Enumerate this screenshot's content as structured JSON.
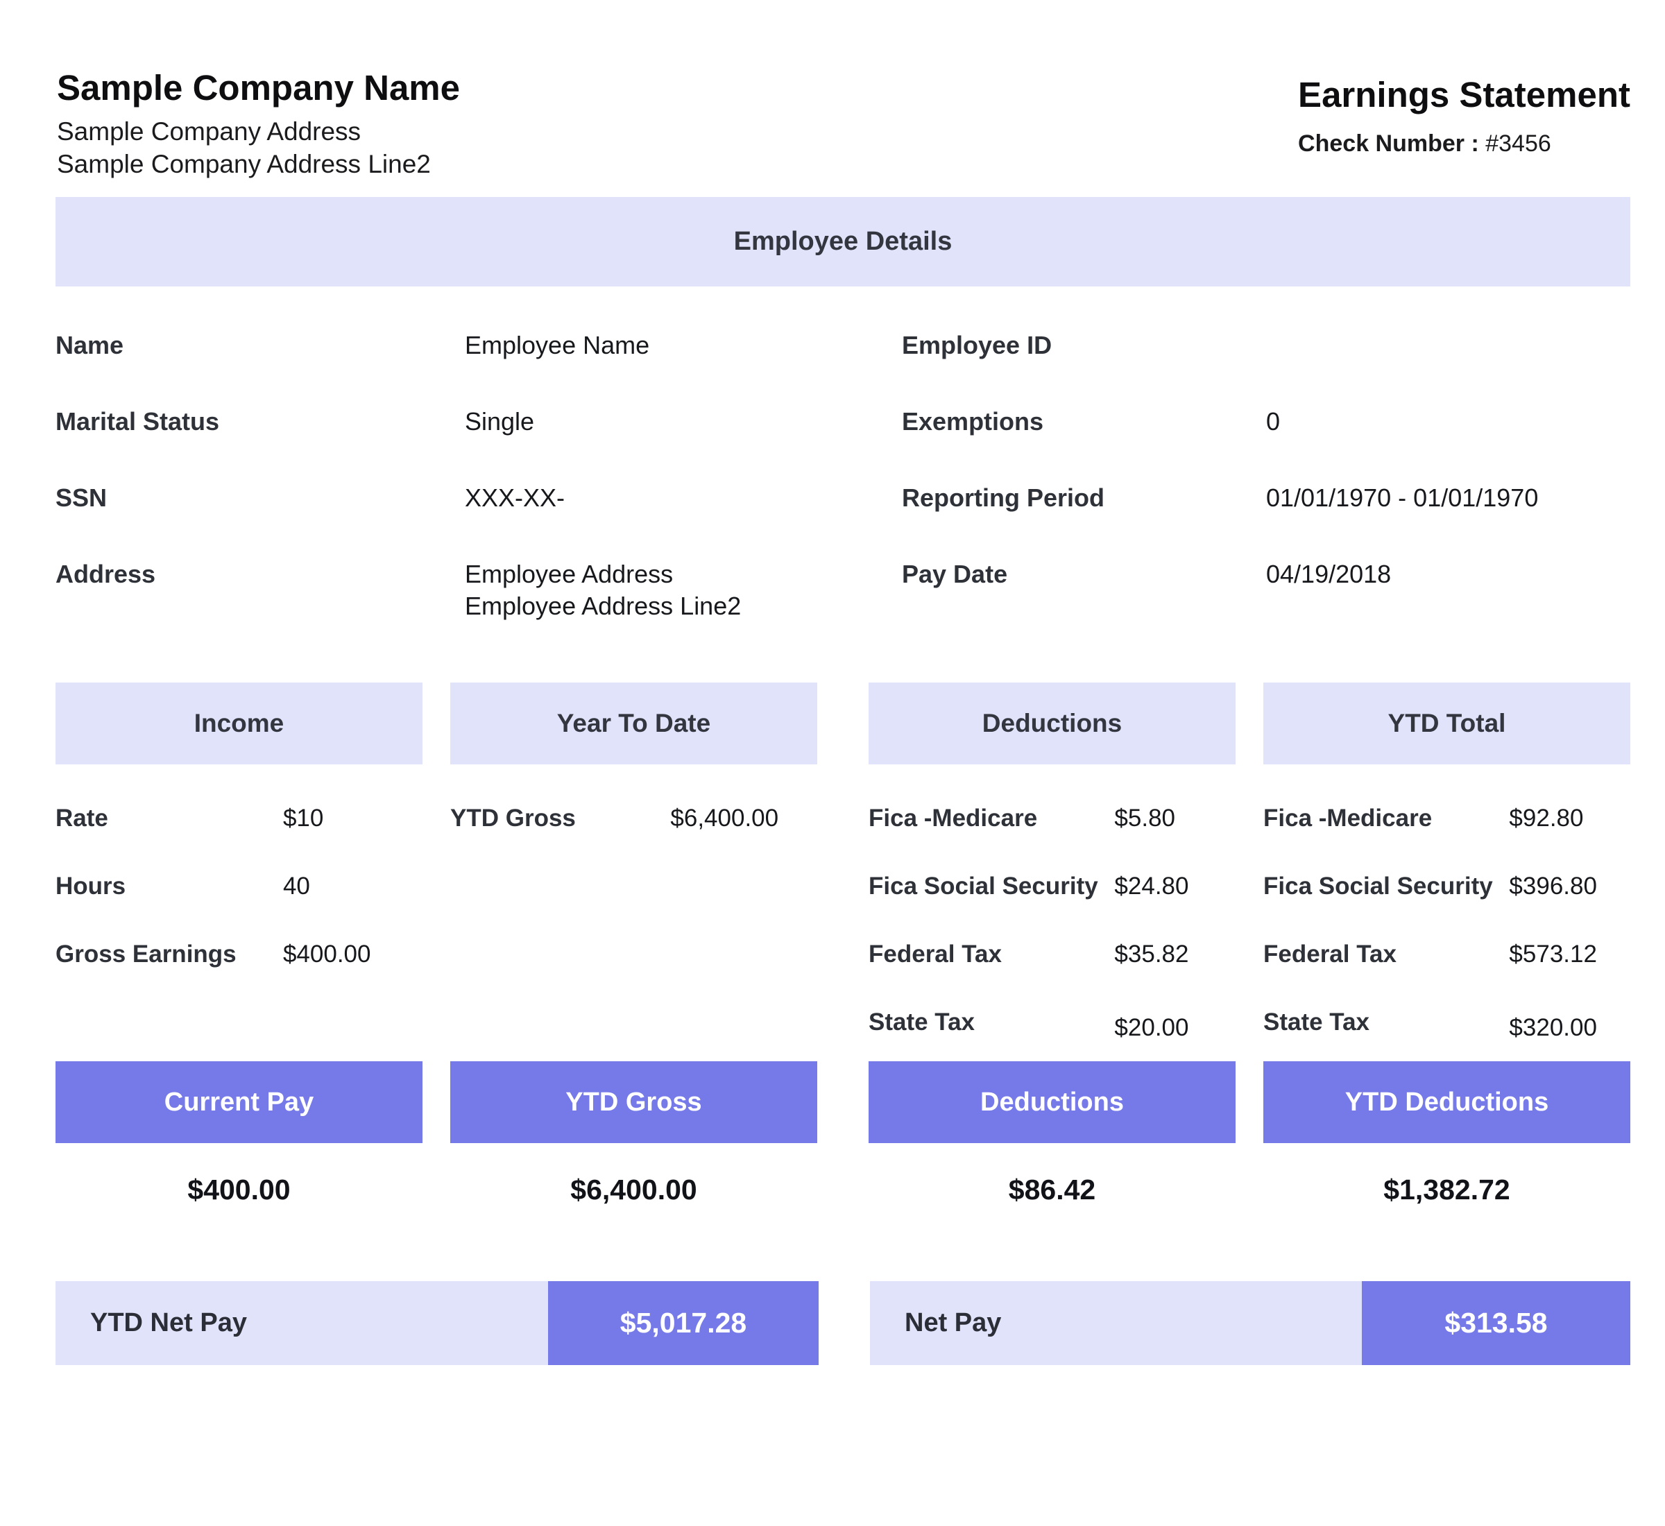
{
  "header": {
    "company_name": "Sample Company Name",
    "company_address_line1": "Sample Company Address",
    "company_address_line2": "Sample Company Address Line2",
    "statement_title": "Earnings Statement",
    "check_number_label": "Check Number :",
    "check_number_value": "#3456"
  },
  "employee_details": {
    "title": "Employee Details",
    "rows": [
      {
        "left_label": "Name",
        "left_value": "Employee Name",
        "right_label": "Employee ID",
        "right_value": ""
      },
      {
        "left_label": "Marital Status",
        "left_value": "Single",
        "right_label": "Exemptions",
        "right_value": "0"
      },
      {
        "left_label": "SSN",
        "left_value": "XXX-XX-",
        "right_label": "Reporting Period",
        "right_value": "01/01/1970 - 01/01/1970"
      },
      {
        "left_label": "Address",
        "left_value": "Employee Address",
        "left_value_line2": "Employee Address Line2",
        "right_label": "Pay Date",
        "right_value": "04/19/2018"
      }
    ]
  },
  "sections": {
    "income": {
      "title": "Income",
      "rows": [
        {
          "label": "Rate",
          "value": "$10"
        },
        {
          "label": "Hours",
          "value": "40"
        },
        {
          "label": "Gross Earnings",
          "value": "$400.00"
        }
      ]
    },
    "year_to_date": {
      "title": "Year To Date",
      "rows": [
        {
          "label": "YTD Gross",
          "value": "$6,400.00"
        }
      ]
    },
    "deductions": {
      "title": "Deductions",
      "rows": [
        {
          "label": "Fica -Medicare",
          "value": "$5.80"
        },
        {
          "label": "Fica Social Security",
          "value": "$24.80"
        },
        {
          "label": "Federal Tax",
          "value": "$35.82"
        },
        {
          "label": "State Tax",
          "value": "$20.00"
        }
      ]
    },
    "ytd_total": {
      "title": "YTD Total",
      "rows": [
        {
          "label": "Fica -Medicare",
          "value": "$92.80"
        },
        {
          "label": "Fica Social Security",
          "value": "$396.80"
        },
        {
          "label": "Federal Tax",
          "value": "$573.12"
        },
        {
          "label": "State Tax",
          "value": "$320.00"
        }
      ]
    }
  },
  "summary": [
    {
      "title": "Current Pay",
      "value": "$400.00"
    },
    {
      "title": "YTD Gross",
      "value": "$6,400.00"
    },
    {
      "title": "Deductions",
      "value": "$86.42"
    },
    {
      "title": "YTD Deductions",
      "value": "$1,382.72"
    }
  ],
  "totals": [
    {
      "label": "YTD Net Pay",
      "value": "$5,017.28"
    },
    {
      "label": "Net Pay",
      "value": "$313.58"
    }
  ],
  "colors": {
    "section_header_bg": "#E0E3FA",
    "accent_purple": "#767AE8",
    "heading_text": "#33363F",
    "label_text": "#2E3138",
    "value_text": "#17181C"
  }
}
